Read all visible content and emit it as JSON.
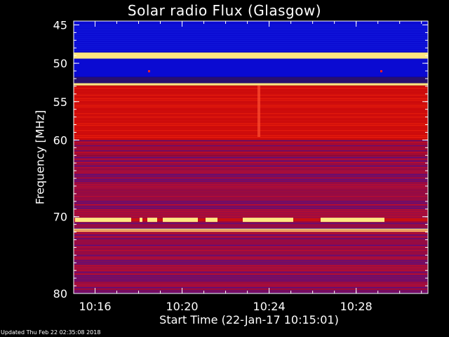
{
  "chart_data": {
    "type": "heatmap",
    "title": "Solar radio Flux (Glasgow)",
    "xlabel": "Start Time (22-Jan-17 10:15:01)",
    "ylabel": "Frequency [MHz]",
    "y_ticks": [
      45,
      50,
      55,
      60,
      70,
      80
    ],
    "x_ticks": [
      "10:16",
      "10:20",
      "10:24",
      "10:28"
    ],
    "x_tick_minutes": [
      16,
      20,
      24,
      28
    ],
    "xlim_minutes": [
      15.0167,
      31.3
    ],
    "ylim_mhz": [
      44.5,
      80.0
    ],
    "colormap": {
      "low": "#0a0ad2",
      "mid": "#c80a0a",
      "high": "#ffe680",
      "peak": "#ffffff"
    },
    "bands": [
      {
        "f0": 44.5,
        "f1": 48.6,
        "kind": "blue"
      },
      {
        "f0": 48.6,
        "f1": 49.4,
        "kind": "bright"
      },
      {
        "f0": 49.4,
        "f1": 51.8,
        "kind": "blue"
      },
      {
        "f0": 51.8,
        "f1": 52.6,
        "kind": "darkblue"
      },
      {
        "f0": 52.6,
        "f1": 52.9,
        "kind": "bright"
      },
      {
        "f0": 52.9,
        "f1": 60.0,
        "kind": "red"
      },
      {
        "f0": 60.0,
        "f1": 62.0,
        "kind": "darkred"
      },
      {
        "f0": 62.0,
        "f1": 71.5,
        "kind": "mixed"
      },
      {
        "f0": 71.5,
        "f1": 72.0,
        "kind": "bright"
      },
      {
        "f0": 72.0,
        "f1": 80.0,
        "kind": "mixed"
      }
    ],
    "burst_freq_mhz": 70.4
  },
  "footer": {
    "updated": "Updated Thu Feb 22 02:35:08 2018"
  }
}
